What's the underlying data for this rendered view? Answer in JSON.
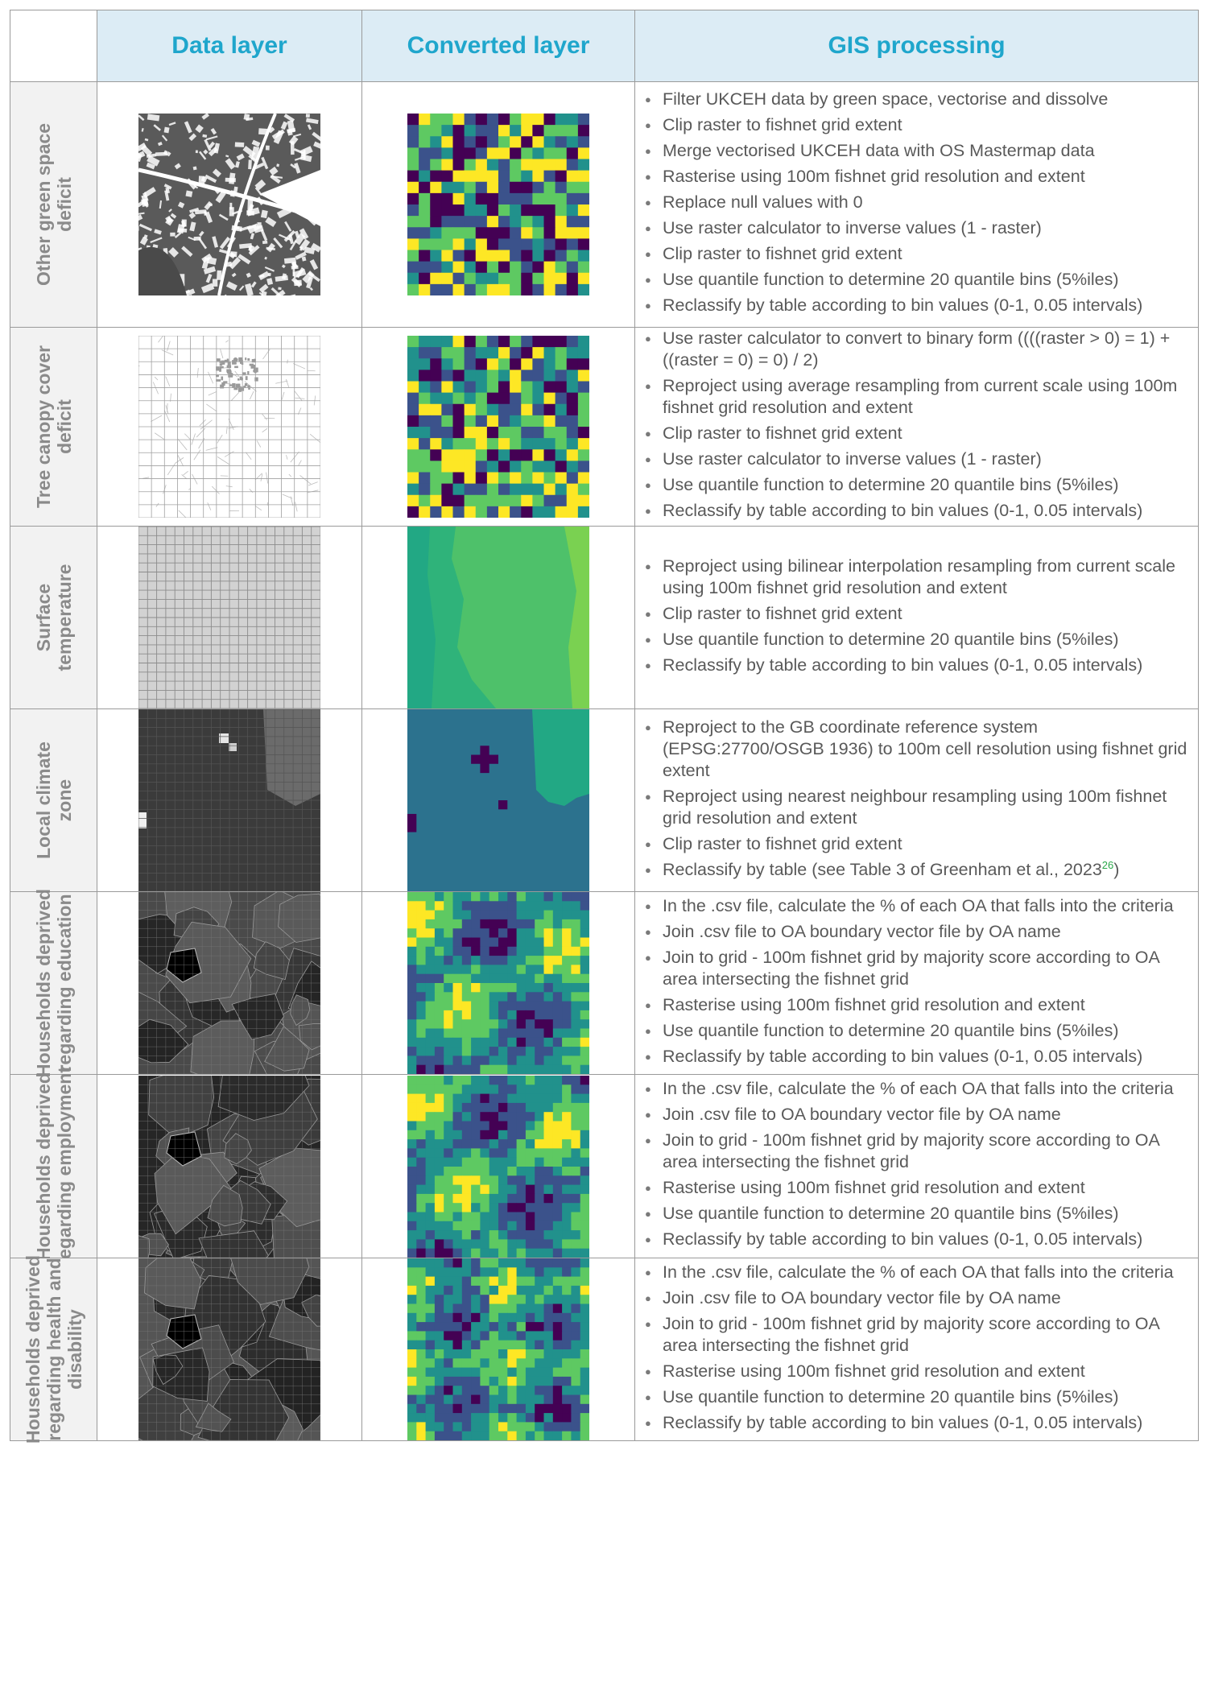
{
  "headers": {
    "data_layer": "Data layer",
    "converted_layer": "Converted layer",
    "gis_processing": "GIS processing"
  },
  "rows": [
    {
      "label": "Other green space deficit",
      "label_lines": [
        "Other green space",
        "deficit"
      ],
      "steps": [
        "Filter UKCEH data by green space, vectorise and dissolve",
        "Clip raster to fishnet grid extent",
        "Merge vectorised UKCEH data with OS Mastermap data",
        "Rasterise using 100m fishnet grid resolution and extent",
        "Replace null values with 0",
        "Use raster calculator to inverse values (1 - raster)",
        "Clip raster to fishnet grid extent",
        "Use quantile function to determine 20 quantile bins (5%iles)",
        "Reclassify by table according to bin values (0-1, 0.05 intervals)"
      ]
    },
    {
      "label": "Tree canopy cover deficit",
      "label_lines": [
        "Tree canopy cover",
        "deficit"
      ],
      "steps": [
        "Use raster calculator to convert to binary form ((((raster > 0) = 1) + ((raster = 0) = 0) / 2)",
        "Reproject using average resampling from current scale using 100m fishnet grid resolution and extent",
        "Clip raster to fishnet grid extent",
        "Use raster calculator to inverse values (1 - raster)",
        "Use quantile function to determine 20 quantile bins (5%iles)",
        "Reclassify by table according to bin values (0-1, 0.05 intervals)"
      ]
    },
    {
      "label": "Surface temperature",
      "label_lines": [
        "Surface",
        "temperature"
      ],
      "steps": [
        "Reproject using bilinear interpolation resampling from current scale using 100m fishnet grid resolution and extent",
        "Clip raster to fishnet grid extent",
        "Use quantile function to determine 20 quantile bins (5%iles)",
        "Reclassify by table according to bin values (0-1, 0.05 intervals)"
      ]
    },
    {
      "label": "Local climate zone",
      "label_lines": [
        "Local climate",
        "zone"
      ],
      "steps": [
        "Reproject to the GB coordinate reference system (EPSG:27700/OSGB 1936) to 100m cell resolution using fishnet grid extent",
        "Reproject using nearest neighbour resampling using 100m fishnet grid resolution and extent",
        "Clip raster to fishnet grid extent",
        "Reclassify by table (see Table 3 of Greenham et al., 2023"
      ],
      "citation": "26",
      "citation_close": ")"
    },
    {
      "label": "Households deprived regarding education",
      "label_lines": [
        "Households deprived",
        "regarding education"
      ],
      "steps": [
        "In the .csv file, calculate the % of each OA that falls into the criteria",
        "Join .csv file to OA boundary vector file by OA name",
        "Join to grid - 100m fishnet grid by majority score according to OA area intersecting the fishnet grid",
        "Rasterise using 100m fishnet grid resolution and extent",
        "Use quantile function to determine 20 quantile bins (5%iles)",
        "Reclassify by table according to bin values (0-1, 0.05 intervals)"
      ]
    },
    {
      "label": "Households deprived regarding employment",
      "label_lines": [
        "Households deprived",
        "regarding employment"
      ],
      "steps": [
        "In the .csv file, calculate the % of each OA that falls into the criteria",
        "Join .csv file to OA boundary vector file by OA name",
        "Join to grid - 100m fishnet grid by majority score according to OA area intersecting the fishnet grid",
        "Rasterise using 100m fishnet grid resolution and extent",
        "Use quantile function to determine 20 quantile bins (5%iles)",
        "Reclassify by table according to bin values (0-1, 0.05 intervals)"
      ]
    },
    {
      "label": "Households deprived regarding health and disability",
      "label_lines": [
        "Households deprived",
        "regarding health and",
        "disability"
      ],
      "steps": [
        "In the .csv file, calculate the % of each OA that falls into the criteria",
        "Join .csv file to OA boundary vector file by OA name",
        "Join to grid - 100m fishnet grid by majority score according to OA area intersecting the fishnet grid",
        "Rasterise using 100m fishnet grid resolution and extent",
        "Use quantile function to determine 20 quantile bins (5%iles)",
        "Reclassify by table according to bin values (0-1, 0.05 intervals)"
      ]
    }
  ],
  "colors": {
    "header_bg": "#dcecf5",
    "header_text": "#1fa6cc",
    "label_bg": "#f2f2f2",
    "viridis": [
      "#440154",
      "#3b528b",
      "#21918c",
      "#5ec962",
      "#fde725"
    ]
  }
}
